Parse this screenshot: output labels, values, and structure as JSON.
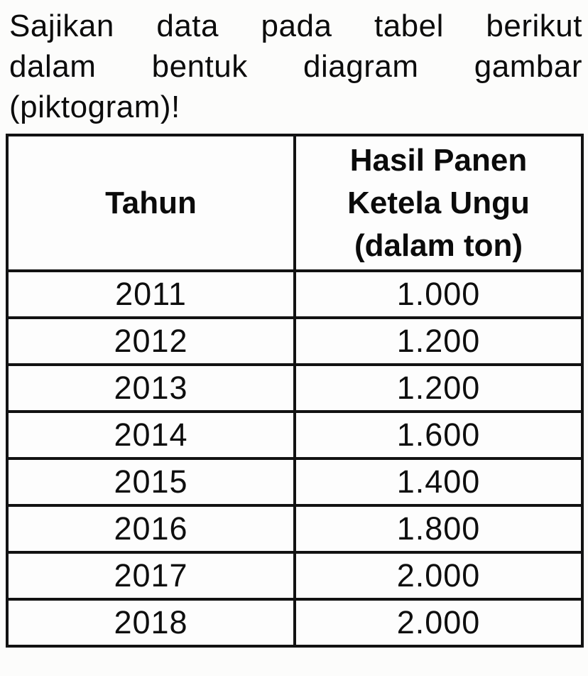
{
  "title": {
    "lines": [
      "Sajikan data pada tabel berikut",
      "dalam bentuk diagram gambar",
      "(piktogram)!"
    ]
  },
  "table": {
    "col1_header": "Tahun",
    "col2_header_lines": [
      "Hasil Panen",
      "Ketela Ungu",
      "(dalam ton)"
    ],
    "rows": [
      {
        "tahun": "2011",
        "hasil": "1.000"
      },
      {
        "tahun": "2012",
        "hasil": "1.200"
      },
      {
        "tahun": "2013",
        "hasil": "1.200"
      },
      {
        "tahun": "2014",
        "hasil": "1.600"
      },
      {
        "tahun": "2015",
        "hasil": "1.400"
      },
      {
        "tahun": "2016",
        "hasil": "1.800"
      },
      {
        "tahun": "2017",
        "hasil": "2.000"
      },
      {
        "tahun": "2018",
        "hasil": "2.000"
      }
    ]
  },
  "chart_data": {
    "type": "table",
    "title": "Hasil Panen Ketela Ungu (dalam ton)",
    "categories": [
      "2011",
      "2012",
      "2013",
      "2014",
      "2015",
      "2016",
      "2017",
      "2018"
    ],
    "values": [
      1000,
      1200,
      1200,
      1600,
      1400,
      1800,
      2000,
      2000
    ],
    "xlabel": "Tahun",
    "ylabel": "Hasil Panen Ketela Ungu (dalam ton)"
  },
  "colors": {
    "ink": "#101010",
    "paper": "#fcfcfb"
  }
}
